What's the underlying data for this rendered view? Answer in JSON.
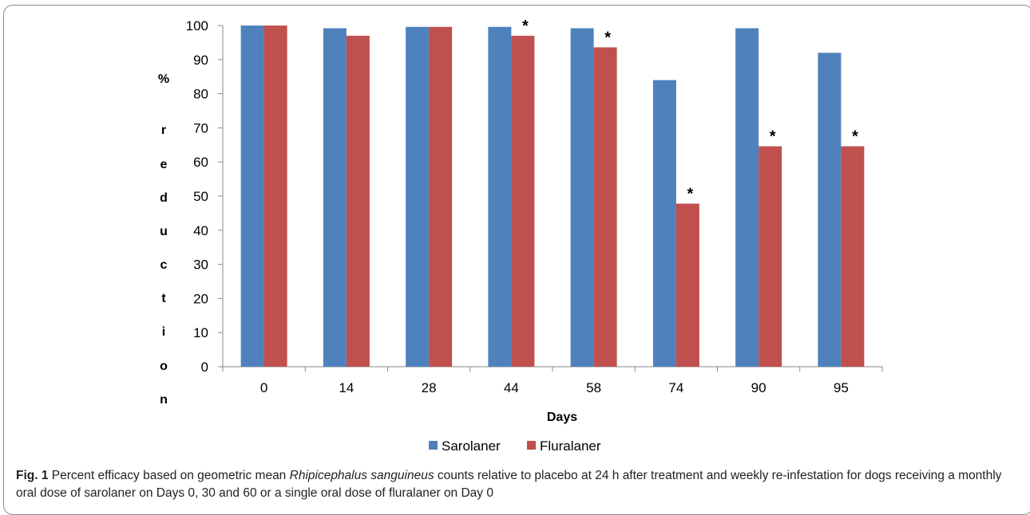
{
  "chart_data": {
    "type": "bar",
    "categories": [
      "0",
      "14",
      "28",
      "44",
      "58",
      "74",
      "90",
      "95"
    ],
    "series": [
      {
        "name": "Sarolaner",
        "color": "#4f81bd",
        "values": [
          100,
          99.2,
          99.6,
          99.6,
          99.2,
          84,
          99.2,
          92
        ]
      },
      {
        "name": "Fluralaner",
        "color": "#c0504d",
        "values": [
          100,
          97,
          99.6,
          97,
          93.6,
          47.8,
          64.6,
          64.6
        ],
        "significant": [
          false,
          false,
          false,
          true,
          true,
          true,
          true,
          true
        ]
      }
    ],
    "significance_marker": "*",
    "xlabel": "Days",
    "ylabel": "% reduction",
    "ylabel_lines": [
      "%",
      "r",
      "e",
      "d",
      "u",
      "c",
      "t",
      "i",
      "o",
      "n"
    ],
    "ylim": [
      0,
      100
    ],
    "yticks": [
      "0",
      "10",
      "20",
      "30",
      "40",
      "50",
      "60",
      "70",
      "80",
      "90",
      "100"
    ],
    "legend_position": "bottom",
    "grid": false
  },
  "caption": {
    "label": "Fig. 1",
    "text_before": " Percent efficacy based on geometric mean ",
    "species": "Rhipicephalus sanguineus",
    "text_after": " counts relative to placebo at 24 h after treatment and weekly re-infestation for dogs receiving a monthly oral dose of sarolaner on Days 0, 30 and 60 or a single oral dose of fluralaner on Day 0"
  }
}
